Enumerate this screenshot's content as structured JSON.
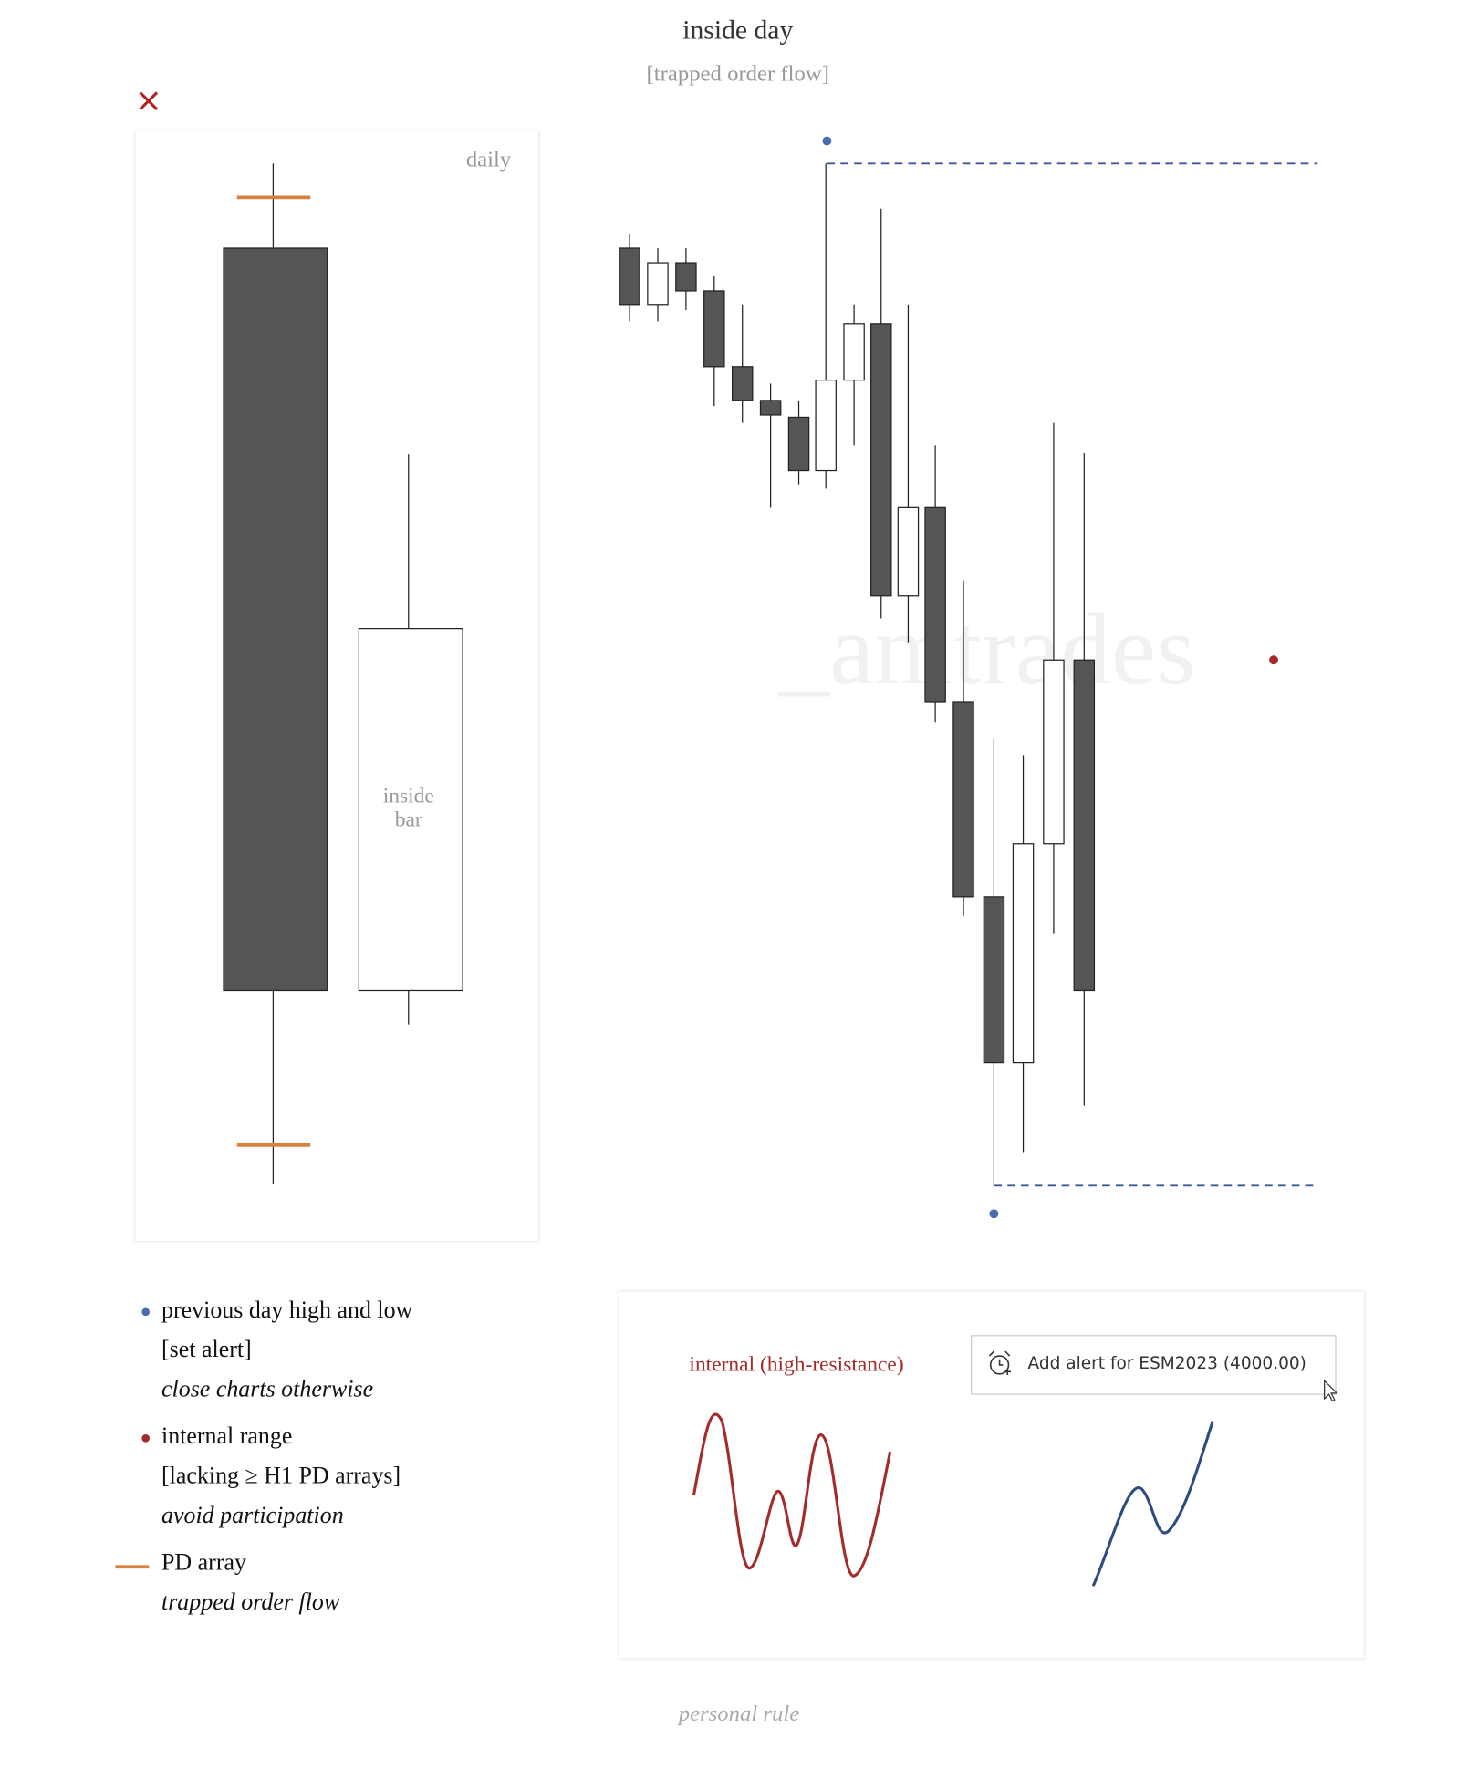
{
  "header": {
    "title": "inside day",
    "subtitle": "[trapped order flow]"
  },
  "daily_panel": {
    "label": "daily",
    "inside_bar_label": [
      "inside",
      "bar"
    ]
  },
  "watermark": "_amtrades",
  "legend": {
    "items": [
      {
        "lines": [
          "previous day high and low",
          "[set alert]",
          "close charts otherwise"
        ]
      },
      {
        "lines": [
          "internal range",
          "[lacking ≥ H1 PD arrays]",
          "avoid participation"
        ]
      },
      {
        "lines": [
          "PD array",
          "trapped order flow"
        ]
      }
    ]
  },
  "alert_panel": {
    "label": "internal (high-resistance)",
    "alert_button": "Add alert for ESM2023 (4000.00)"
  },
  "footer": "personal rule"
}
